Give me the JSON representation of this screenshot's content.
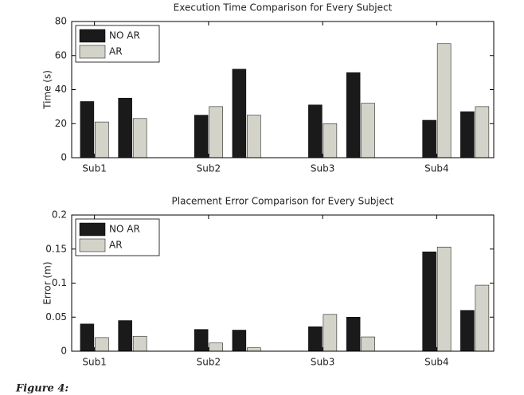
{
  "chart_data": [
    {
      "type": "bar",
      "title": "Execution Time Comparison for Every Subject",
      "ylabel": "Time (s)",
      "x": [
        1,
        2,
        3,
        4,
        5,
        6,
        7,
        8,
        9,
        10,
        11
      ],
      "xlim": [
        0.4,
        11.5
      ],
      "xticks": [
        {
          "value": 1,
          "label": "Sub1"
        },
        {
          "value": 4,
          "label": "Sub2"
        },
        {
          "value": 7,
          "label": "Sub3"
        },
        {
          "value": 10,
          "label": "Sub4"
        }
      ],
      "ylim": [
        0,
        80
      ],
      "yticks": [
        0,
        20,
        40,
        60,
        80
      ],
      "legend": "upper left",
      "series": [
        {
          "name": "NO AR",
          "color": "#1a1a1a",
          "values": [
            33,
            35,
            null,
            25,
            52,
            null,
            31,
            50,
            null,
            22,
            27
          ]
        },
        {
          "name": "AR",
          "color": "#d3d3c9",
          "values": [
            21,
            23,
            null,
            30,
            25,
            null,
            20,
            32,
            null,
            67,
            30
          ]
        }
      ]
    },
    {
      "type": "bar",
      "title": "Placement Error Comparison for Every Subject",
      "ylabel": "Error (m)",
      "x": [
        1,
        2,
        3,
        4,
        5,
        6,
        7,
        8,
        9,
        10,
        11
      ],
      "xlim": [
        0.4,
        11.5
      ],
      "xticks": [
        {
          "value": 1,
          "label": "Sub1"
        },
        {
          "value": 4,
          "label": "Sub2"
        },
        {
          "value": 7,
          "label": "Sub3"
        },
        {
          "value": 10,
          "label": "Sub4"
        }
      ],
      "ylim": [
        0,
        0.2
      ],
      "yticks": [
        0,
        0.05,
        0.1,
        0.15,
        0.2
      ],
      "legend": "upper left",
      "series": [
        {
          "name": "NO AR",
          "color": "#1a1a1a",
          "values": [
            0.04,
            0.045,
            null,
            0.032,
            0.031,
            null,
            0.036,
            0.05,
            null,
            0.146,
            0.06
          ]
        },
        {
          "name": "AR",
          "color": "#d3d3c9",
          "values": [
            0.02,
            0.022,
            null,
            0.012,
            0.005,
            null,
            0.054,
            0.021,
            null,
            0.153,
            0.097
          ]
        }
      ]
    }
  ],
  "caption": "Figure 4:"
}
